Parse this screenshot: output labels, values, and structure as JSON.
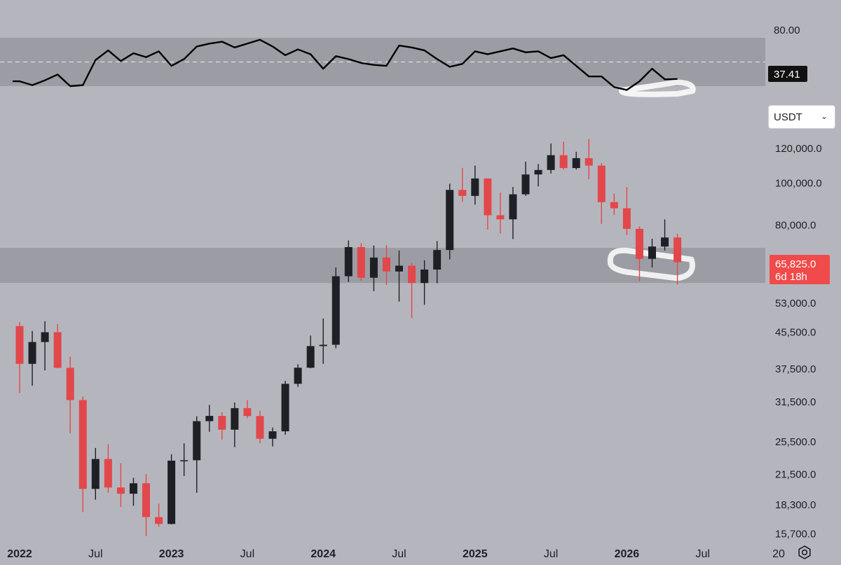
{
  "currency_select": {
    "value": "USDT",
    "chevron_icon": "chevron-down-icon"
  },
  "settings_icon": "settings-icon",
  "colors": {
    "background": "#b5b6bd",
    "zone": "#9c9da4",
    "up_candle": "#1f2026",
    "down_candle": "#e2474b",
    "price_label_bg": "#f04a4a",
    "rsi_label_bg": "#111111",
    "highlight": "#ffffff"
  },
  "chart_data": [
    {
      "type": "line",
      "name": "rsi",
      "y_ticks": [
        "80.00"
      ],
      "current_value": "37.41",
      "zone": [
        30,
        80
      ],
      "midline": 55,
      "x": [
        "2022-01",
        "2022-02",
        "2022-03",
        "2022-04",
        "2022-05",
        "2022-06",
        "2022-07",
        "2022-08",
        "2022-09",
        "2022-10",
        "2022-11",
        "2022-12",
        "2023-01",
        "2023-02",
        "2023-03",
        "2023-04",
        "2023-05",
        "2023-06",
        "2023-07",
        "2023-08",
        "2023-09",
        "2023-10",
        "2023-11",
        "2023-12",
        "2024-01",
        "2024-02",
        "2024-03",
        "2024-04",
        "2024-05",
        "2024-06",
        "2024-07",
        "2024-08",
        "2024-09",
        "2024-10",
        "2024-11",
        "2024-12",
        "2025-01",
        "2025-02",
        "2025-03",
        "2025-04",
        "2025-05",
        "2025-06",
        "2025-07",
        "2025-08",
        "2025-09",
        "2025-10",
        "2025-11",
        "2025-12",
        "2026-01",
        "2026-02",
        "2026-03",
        "2026-04",
        "2026-05"
      ],
      "values": [
        35,
        31,
        36,
        42,
        30,
        31,
        57,
        67,
        56,
        64,
        60,
        66,
        51,
        58,
        71,
        74,
        76,
        70,
        74,
        78,
        71,
        62,
        68,
        63,
        48,
        61,
        58,
        54,
        52,
        51,
        72,
        70,
        67,
        58,
        50,
        53,
        66,
        63,
        66,
        69,
        65,
        66,
        59,
        62,
        51,
        40,
        40,
        29,
        26,
        35,
        48,
        37,
        37.41
      ]
    },
    {
      "type": "candlestick",
      "name": "price",
      "y_scale": "log",
      "y_ticks": [
        "120,000.0",
        "100,000.0",
        "80,000.0",
        "65,825.0",
        "53,000.0",
        "45,500.0",
        "37,500.0",
        "31,500.0",
        "25,500.0",
        "21,500.0",
        "18,300.0",
        "15,700.0"
      ],
      "x_ticks": [
        "2022",
        "Jul",
        "2023",
        "Jul",
        "2024",
        "Jul",
        "2025",
        "Jul",
        "2026",
        "Jul",
        "20"
      ],
      "current_price": "65,825.0",
      "countdown": "6d 18h",
      "support_zone": [
        59000,
        71000
      ],
      "ohlc": [
        [
          "2022-01",
          47000,
          48000,
          33000,
          38500
        ],
        [
          "2022-02",
          38500,
          45800,
          34300,
          43200
        ],
        [
          "2022-03",
          43200,
          48200,
          37200,
          45500
        ],
        [
          "2022-04",
          45500,
          47500,
          37600,
          37700
        ],
        [
          "2022-05",
          37700,
          40000,
          26700,
          31800
        ],
        [
          "2022-06",
          31800,
          32400,
          17600,
          19900
        ],
        [
          "2022-07",
          19900,
          24700,
          18800,
          23300
        ],
        [
          "2022-08",
          23300,
          25200,
          19500,
          20050
        ],
        [
          "2022-09",
          20050,
          22800,
          18100,
          19400
        ],
        [
          "2022-10",
          19400,
          21100,
          18200,
          20500
        ],
        [
          "2022-11",
          20500,
          21500,
          15500,
          17150
        ],
        [
          "2022-12",
          17150,
          18400,
          16300,
          16540
        ],
        [
          "2023-01",
          16540,
          23900,
          16500,
          23100
        ],
        [
          "2023-02",
          23100,
          25300,
          21300,
          23150
        ],
        [
          "2023-03",
          23150,
          29200,
          19500,
          28450
        ],
        [
          "2023-04",
          28450,
          31000,
          26900,
          29250
        ],
        [
          "2023-05",
          29250,
          29800,
          25800,
          27200
        ],
        [
          "2023-06",
          27200,
          31400,
          24800,
          30480
        ],
        [
          "2023-07",
          30480,
          31800,
          28900,
          29230
        ],
        [
          "2023-08",
          29230,
          30100,
          25300,
          25930
        ],
        [
          "2023-09",
          25930,
          27500,
          24900,
          26970
        ],
        [
          "2023-10",
          26970,
          35200,
          26500,
          34650
        ],
        [
          "2023-11",
          34650,
          38400,
          34100,
          37720
        ],
        [
          "2023-12",
          37720,
          44700,
          37600,
          42280
        ],
        [
          "2024-01",
          42280,
          48900,
          38500,
          42580
        ],
        [
          "2024-02",
          42580,
          64000,
          41800,
          61130
        ],
        [
          "2024-03",
          61130,
          73800,
          59300,
          71290
        ],
        [
          "2024-04",
          71290,
          72800,
          59700,
          60640
        ],
        [
          "2024-05",
          60640,
          71900,
          56500,
          67470
        ],
        [
          "2024-06",
          67470,
          72000,
          58400,
          62680
        ],
        [
          "2024-07",
          62680,
          70000,
          53500,
          64630
        ],
        [
          "2024-08",
          64630,
          65600,
          49000,
          58970
        ],
        [
          "2024-09",
          58970,
          66500,
          52600,
          63330
        ],
        [
          "2024-10",
          63330,
          73600,
          58900,
          70200
        ],
        [
          "2024-11",
          70200,
          99600,
          66800,
          96400
        ],
        [
          "2024-12",
          96400,
          108300,
          90500,
          93400
        ],
        [
          "2025-01",
          93400,
          109600,
          89200,
          102400
        ],
        [
          "2025-02",
          102400,
          102500,
          78200,
          84350
        ],
        [
          "2025-03",
          84350,
          95000,
          76600,
          82550
        ],
        [
          "2025-04",
          82550,
          97900,
          74400,
          94200
        ],
        [
          "2025-05",
          94200,
          111900,
          93400,
          104600
        ],
        [
          "2025-06",
          104600,
          110500,
          98200,
          107100
        ],
        [
          "2025-07",
          107100,
          123200,
          105100,
          115800
        ],
        [
          "2025-08",
          115800,
          124400,
          107300,
          108200
        ],
        [
          "2025-09",
          108200,
          117900,
          107300,
          114000
        ],
        [
          "2025-10",
          114000,
          126200,
          102000,
          109600
        ],
        [
          "2025-11",
          109600,
          111000,
          80600,
          90400
        ],
        [
          "2025-12",
          90400,
          94600,
          84500,
          87500
        ],
        [
          "2026-01",
          87500,
          97900,
          76000,
          78500
        ],
        [
          "2026-02",
          78500,
          79500,
          59500,
          67000
        ],
        [
          "2026-03",
          67000,
          74500,
          64000,
          71500
        ],
        [
          "2026-04",
          71500,
          82500,
          70000,
          75000
        ],
        [
          "2026-05",
          75000,
          76500,
          58500,
          65825
        ]
      ]
    }
  ]
}
